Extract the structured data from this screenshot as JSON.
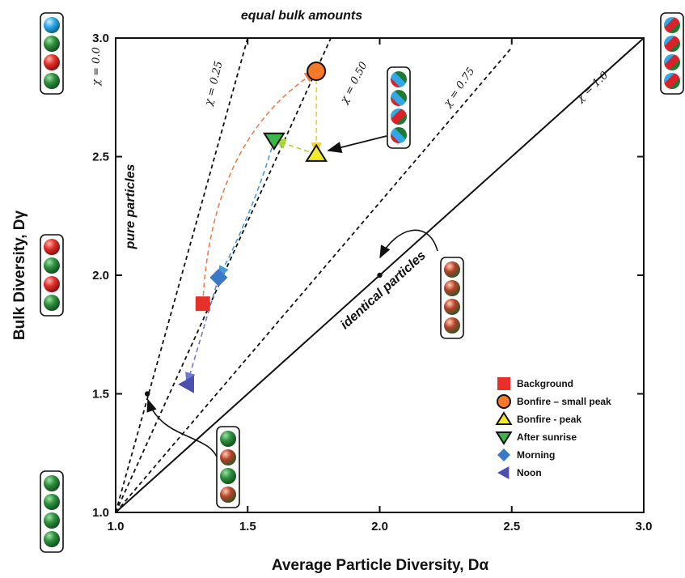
{
  "chart_data": {
    "type": "scatter",
    "xlabel": "Average Particle Diversity, Dα",
    "ylabel": "Bulk Diversity, Dγ",
    "xlim": [
      1.0,
      3.0
    ],
    "ylim": [
      1.0,
      3.0
    ],
    "x_ticks": [
      "1.0",
      "1.5",
      "2.0",
      "2.5",
      "3.0"
    ],
    "y_ticks": [
      "1.0",
      "1.5",
      "2.0",
      "2.5",
      "3.0"
    ],
    "grid": false,
    "legend_position": "bottom-right",
    "chi_lines": [
      {
        "label": "χ = 0.0",
        "style": "dashed"
      },
      {
        "label": "χ = 0.25",
        "style": "dashed"
      },
      {
        "label": "χ = 0.50",
        "style": "dashed"
      },
      {
        "label": "χ = 0.75",
        "style": "dashed"
      },
      {
        "label": "χ = 1.0",
        "style": "solid"
      }
    ],
    "annotations": {
      "equal_bulk": "equal bulk amounts",
      "pure": "pure particles",
      "identical": "identical particles"
    },
    "series": [
      {
        "name": "Background",
        "x": 1.33,
        "y": 1.88,
        "marker": "square",
        "color": "#e8302a"
      },
      {
        "name": "Bonfire – small peak",
        "x": 1.76,
        "y": 2.86,
        "marker": "circle",
        "color": "#f47a2a"
      },
      {
        "name": "Bonfire - peak",
        "x": 1.76,
        "y": 2.51,
        "marker": "triangle-up",
        "color": "#f2ea2e"
      },
      {
        "name": "After sunrise",
        "x": 1.6,
        "y": 2.57,
        "marker": "triangle-down",
        "color": "#3cb54a"
      },
      {
        "name": "Morning",
        "x": 1.39,
        "y": 1.99,
        "marker": "diamond",
        "color": "#3b78c7"
      },
      {
        "name": "Noon",
        "x": 1.27,
        "y": 1.54,
        "marker": "triangle-left",
        "color": "#4a4fb0"
      }
    ],
    "trajectory": [
      {
        "from": "Background",
        "to": "Bonfire – small peak",
        "color": "#f47a4a"
      },
      {
        "from": "Bonfire – small peak",
        "to": "Bonfire - peak",
        "color": "#f2d030"
      },
      {
        "from": "Bonfire - peak",
        "to": "After sunrise",
        "color": "#a9d638"
      },
      {
        "from": "After sunrise",
        "to": "Morning",
        "color": "#4a9ad8"
      },
      {
        "from": "Morning",
        "to": "Noon",
        "color": "#6a7acc"
      }
    ],
    "reference_points": [
      {
        "x": 1.12,
        "y": 1.5
      },
      {
        "x": 2.0,
        "y": 2.0
      }
    ],
    "colors": {
      "green": "#1e7a32",
      "red": "#d8232a",
      "blue": "#2fa8e8"
    }
  }
}
